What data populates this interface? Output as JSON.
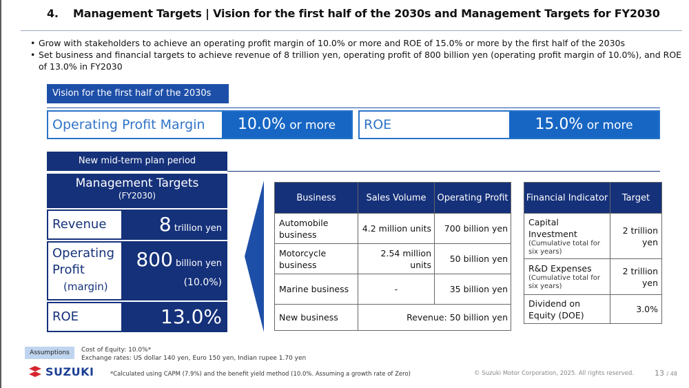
{
  "header": {
    "section_number": "4.",
    "title": "Management Targets | Vision for the first half of the 2030s and Management Targets for FY2030"
  },
  "bullets": [
    "Grow with stakeholders to achieve an operating profit margin of 10.0% or more and ROE of 15.0% or more by the first half of the 2030s",
    "Set business and financial targets to achieve revenue of 8 trillion yen, operating profit of 800 billion yen (operating profit margin of 10.0%), and ROE of 13.0% in FY2030"
  ],
  "vision": {
    "heading": "Vision for the first half of the 2030s",
    "opm_label": "Operating Profit Margin",
    "opm_value": "10.0%",
    "opm_suffix": " or more",
    "roe_label": "ROE",
    "roe_value": "15.0%",
    "roe_suffix": " or more"
  },
  "management": {
    "period_label": "New mid-term plan period",
    "title": "Management Targets",
    "subtitle": "(FY2030)",
    "revenue_label": "Revenue",
    "revenue_value": "8",
    "revenue_unit": " trillion yen",
    "op_label_1": "Operating",
    "op_label_2": "Profit",
    "op_label_3": "(margin)",
    "op_value": "800",
    "op_unit": " billion yen",
    "op_margin": "(10.0%)",
    "roe_label": "ROE",
    "roe_value": "13.0%"
  },
  "business_table": {
    "headers": [
      "Business",
      "Sales Volume",
      "Operating Profit"
    ],
    "rows": [
      {
        "business": "Automobile business",
        "volume": "4.2 million units",
        "profit": "700 billion yen"
      },
      {
        "business": "Motorcycle business",
        "volume": "2.54 million units",
        "profit": "50 billion yen"
      },
      {
        "business": "Marine business",
        "volume": "-",
        "profit": "35 billion yen"
      },
      {
        "business": "New business",
        "merged": "Revenue: 50 billion yen"
      }
    ]
  },
  "financial_table": {
    "headers": [
      "Financial Indicator",
      "Target"
    ],
    "rows": [
      {
        "indicator": "Capital Investment",
        "note": "(Cumulative total for six years)",
        "target": "2 trillion yen"
      },
      {
        "indicator": "R&D Expenses",
        "note": "(Cumulative total for six years)",
        "target": "2 trillion yen"
      },
      {
        "indicator": "Dividend on Equity (DOE)",
        "note": "",
        "target": "3.0%"
      }
    ]
  },
  "footer": {
    "assumptions_label": "Assumptions",
    "assumption_1": "Cost of Equity: 10.0%*",
    "assumption_2": "Exchange rates: US dollar 140 yen, Euro 150 yen, Indian rupee 1.70 yen",
    "logo_text": "SUZUKI",
    "footnote": "*Calculated using CAPM (7.9%) and the benefit yield method (10.0%. Assuming a growth rate of Zero)",
    "copyright": "© Suzuki Motor Corporation, 2025. All rights reserved.",
    "page_current": "13",
    "page_total": "/ 48"
  },
  "colors": {
    "navy": "#15317a",
    "blue": "#1766c4",
    "light_blue": "#2f73c9",
    "assumption_bg": "#bfd4ee"
  }
}
